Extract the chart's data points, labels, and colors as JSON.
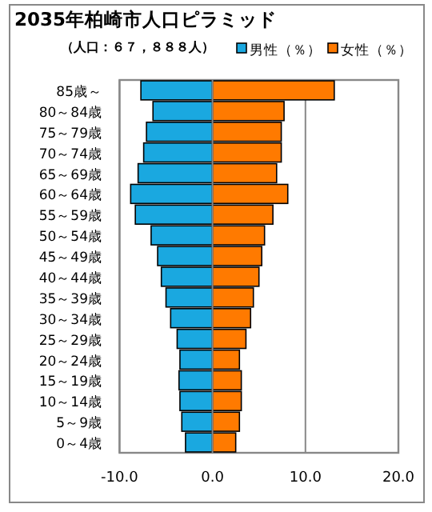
{
  "chart_data": {
    "type": "bar",
    "orientation": "horizontal",
    "title": "2035年柏崎市人口ピラミッド",
    "subtitle": "（人口：６７，８８８人）",
    "categories": [
      "85歳～",
      "80～84歳",
      "75～79歳",
      "70～74歳",
      "65～69歳",
      "60～64歳",
      "55～59歳",
      "50～54歳",
      "45～49歳",
      "40～44歳",
      "35～39歳",
      "30～34歳",
      "25～29歳",
      "20～24歳",
      "15～19歳",
      "10～14歳",
      "5～9歳",
      "0～4歳"
    ],
    "series": [
      {
        "name": "男性（％）",
        "color": "#1aa8e0",
        "values": [
          -7.7,
          -6.4,
          -7.1,
          -7.4,
          -8.0,
          -8.8,
          -8.3,
          -6.6,
          -5.9,
          -5.5,
          -5.0,
          -4.5,
          -3.8,
          -3.5,
          -3.6,
          -3.5,
          -3.3,
          -2.9
        ]
      },
      {
        "name": "女性（％）",
        "color": "#ff7a00",
        "values": [
          13.1,
          7.7,
          7.4,
          7.4,
          6.9,
          8.1,
          6.5,
          5.6,
          5.3,
          5.0,
          4.4,
          4.1,
          3.6,
          2.9,
          3.1,
          3.1,
          2.9,
          2.5
        ]
      }
    ],
    "xlim": [
      -10,
      20
    ],
    "xticks": [
      {
        "value": -10,
        "label": "-10.0"
      },
      {
        "value": 0,
        "label": "0.0"
      },
      {
        "value": 10,
        "label": "10.0"
      },
      {
        "value": 20,
        "label": "20.0"
      }
    ],
    "grid": "x",
    "legend": "top right",
    "stacked": true
  }
}
